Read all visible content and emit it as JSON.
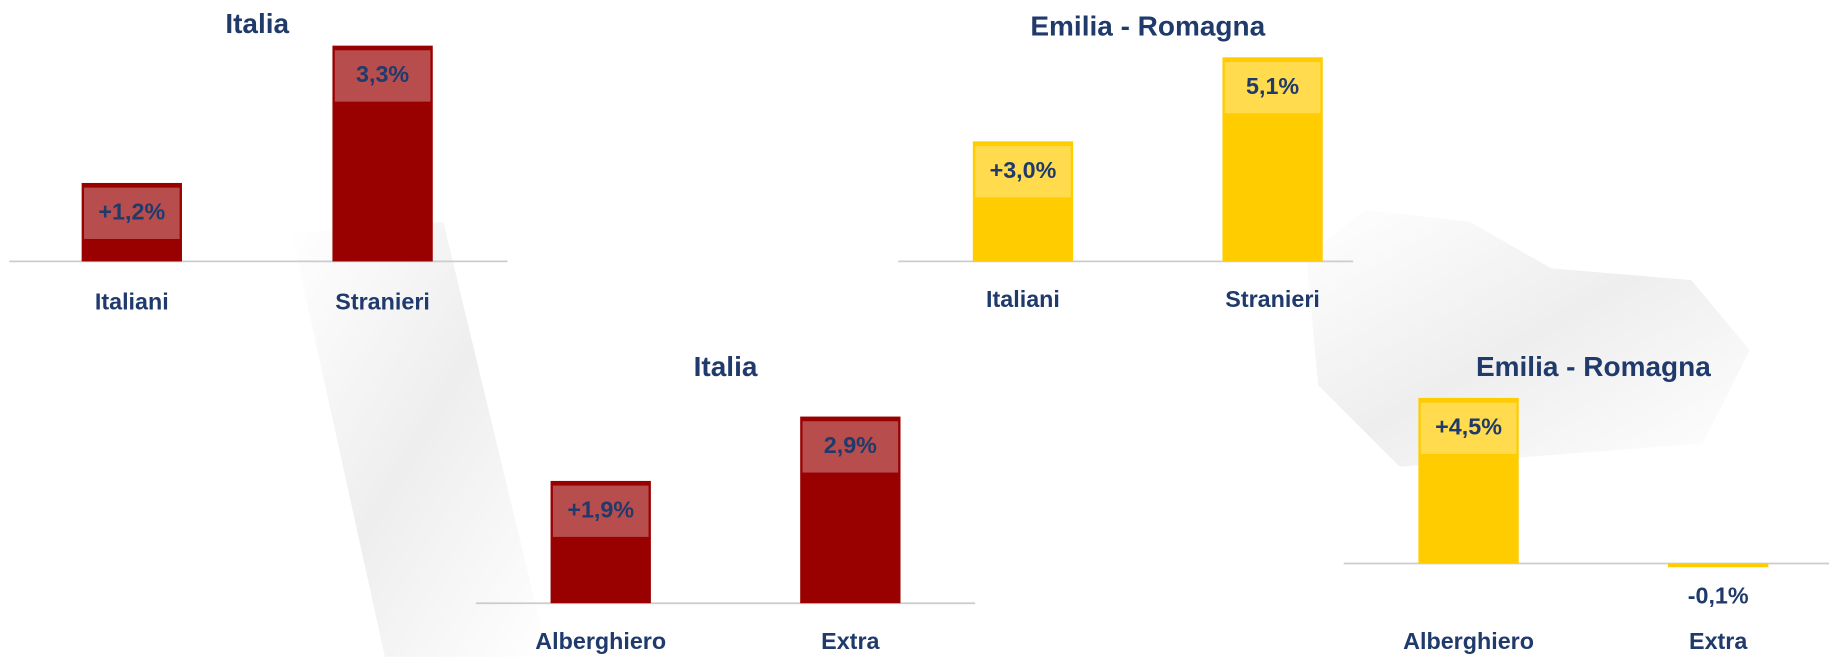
{
  "chart_data": [
    {
      "type": "bar",
      "title": "Italia",
      "categories": [
        "Italiani",
        "Stranieri"
      ],
      "values": [
        1.2,
        3.3
      ],
      "value_labels": [
        "+1,2%",
        "3,3%"
      ],
      "color": "#990000"
    },
    {
      "type": "bar",
      "title": "Emilia - Romagna",
      "categories": [
        "Italiani",
        "Stranieri"
      ],
      "values": [
        3.0,
        5.1
      ],
      "value_labels": [
        "+3,0%",
        "5,1%"
      ],
      "color": "#ffcc00"
    },
    {
      "type": "bar",
      "title": "Italia",
      "categories": [
        "Alberghiero",
        "Extra"
      ],
      "values": [
        1.9,
        2.9
      ],
      "value_labels": [
        "+1,9%",
        "2,9%"
      ],
      "color": "#990000"
    },
    {
      "type": "bar",
      "title": "Emilia - Romagna",
      "categories": [
        "Alberghiero",
        "Extra"
      ],
      "values": [
        4.5,
        -0.1
      ],
      "value_labels": [
        "+4,5%",
        "-0,1%"
      ],
      "color": "#ffcc00"
    }
  ]
}
